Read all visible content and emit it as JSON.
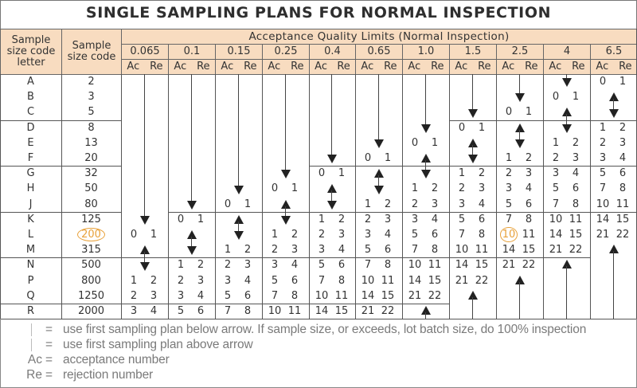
{
  "title": "SINGLE SAMPLING PLANS FOR NORMAL INSPECTION",
  "header": {
    "letter_col": "Sample size code letter",
    "size_col": "Sample size code",
    "aql_title": "Acceptance Quality Limits (Normal Inspection)",
    "ac": "Ac",
    "re": "Re"
  },
  "rows": [
    {
      "letter": "A",
      "size": "2"
    },
    {
      "letter": "B",
      "size": "3"
    },
    {
      "letter": "C",
      "size": "5"
    },
    {
      "letter": "D",
      "size": "8"
    },
    {
      "letter": "E",
      "size": "13"
    },
    {
      "letter": "F",
      "size": "20"
    },
    {
      "letter": "G",
      "size": "32"
    },
    {
      "letter": "H",
      "size": "50"
    },
    {
      "letter": "J",
      "size": "80"
    },
    {
      "letter": "K",
      "size": "125"
    },
    {
      "letter": "L",
      "size": "200",
      "highlight": true
    },
    {
      "letter": "M",
      "size": "315"
    },
    {
      "letter": "N",
      "size": "500"
    },
    {
      "letter": "P",
      "size": "800"
    },
    {
      "letter": "Q",
      "size": "1250"
    },
    {
      "letter": "R",
      "size": "2000"
    }
  ],
  "columns": [
    {
      "aql": "0.065",
      "cells": [
        "down",
        "down",
        "down",
        "down",
        "down",
        "down",
        "down",
        "down",
        "down",
        "down",
        [
          "0",
          "1"
        ],
        "both",
        "both",
        [
          "1",
          "2"
        ],
        [
          "2",
          "3"
        ],
        [
          "3",
          "4"
        ]
      ]
    },
    {
      "aql": "0.1",
      "cells": [
        "down",
        "down",
        "down",
        "down",
        "down",
        "down",
        "down",
        "down",
        "down",
        [
          "0",
          "1"
        ],
        "both",
        "both",
        [
          "1",
          "2"
        ],
        [
          "2",
          "3"
        ],
        [
          "3",
          "4"
        ],
        [
          "5",
          "6"
        ]
      ]
    },
    {
      "aql": "0.15",
      "cells": [
        "down",
        "down",
        "down",
        "down",
        "down",
        "down",
        "down",
        "down",
        [
          "0",
          "1"
        ],
        "both",
        "both",
        [
          "1",
          "2"
        ],
        [
          "2",
          "3"
        ],
        [
          "3",
          "4"
        ],
        [
          "5",
          "6"
        ],
        [
          "7",
          "8"
        ]
      ]
    },
    {
      "aql": "0.25",
      "cells": [
        "down",
        "down",
        "down",
        "down",
        "down",
        "down",
        "down",
        [
          "0",
          "1"
        ],
        "both",
        "both",
        [
          "1",
          "2"
        ],
        [
          "2",
          "3"
        ],
        [
          "3",
          "4"
        ],
        [
          "5",
          "6"
        ],
        [
          "7",
          "8"
        ],
        [
          "10",
          "11"
        ]
      ]
    },
    {
      "aql": "0.4",
      "cells": [
        "down",
        "down",
        "down",
        "down",
        "down",
        "down",
        [
          "0",
          "1"
        ],
        "both",
        "both",
        [
          "1",
          "2"
        ],
        [
          "2",
          "3"
        ],
        [
          "3",
          "4"
        ],
        [
          "5",
          "6"
        ],
        [
          "7",
          "8"
        ],
        [
          "10",
          "11"
        ],
        [
          "14",
          "15"
        ]
      ]
    },
    {
      "aql": "0.65",
      "cells": [
        "down",
        "down",
        "down",
        "down",
        "down",
        [
          "0",
          "1"
        ],
        "both",
        "both",
        [
          "1",
          "2"
        ],
        [
          "2",
          "3"
        ],
        [
          "3",
          "4"
        ],
        [
          "5",
          "6"
        ],
        [
          "7",
          "8"
        ],
        [
          "10",
          "11"
        ],
        [
          "14",
          "15"
        ],
        [
          "21",
          "22"
        ]
      ]
    },
    {
      "aql": "1.0",
      "cells": [
        "down",
        "down",
        "down",
        "down",
        [
          "0",
          "1"
        ],
        "both",
        "both",
        [
          "1",
          "2"
        ],
        [
          "2",
          "3"
        ],
        [
          "3",
          "4"
        ],
        [
          "5",
          "6"
        ],
        [
          "7",
          "8"
        ],
        [
          "10",
          "11"
        ],
        [
          "14",
          "15"
        ],
        [
          "21",
          "22"
        ],
        "up"
      ]
    },
    {
      "aql": "1.5",
      "cells": [
        "down",
        "down",
        "down",
        [
          "0",
          "1"
        ],
        "both",
        "both",
        [
          "1",
          "2"
        ],
        [
          "2",
          "3"
        ],
        [
          "3",
          "4"
        ],
        [
          "5",
          "6"
        ],
        [
          "7",
          "8"
        ],
        [
          "10",
          "11"
        ],
        [
          "14",
          "15"
        ],
        [
          "21",
          "22"
        ],
        "up",
        "up"
      ]
    },
    {
      "aql": "2.5",
      "cells": [
        "down",
        "down",
        [
          "0",
          "1"
        ],
        "both",
        "both",
        [
          "1",
          "2"
        ],
        [
          "2",
          "3"
        ],
        [
          "3",
          "4"
        ],
        [
          "5",
          "6"
        ],
        [
          "7",
          "8"
        ],
        [
          "10",
          "11"
        ],
        [
          "14",
          "15"
        ],
        [
          "21",
          "22"
        ],
        "up",
        "up",
        "up"
      ],
      "highlight_row": 10
    },
    {
      "aql": "4",
      "cells": [
        "down",
        [
          "0",
          "1"
        ],
        "both",
        "both",
        [
          "1",
          "2"
        ],
        [
          "2",
          "3"
        ],
        [
          "3",
          "4"
        ],
        [
          "5",
          "6"
        ],
        [
          "7",
          "8"
        ],
        [
          "10",
          "11"
        ],
        [
          "14",
          "15"
        ],
        [
          "21",
          "22"
        ],
        "up",
        "up",
        "up",
        "up"
      ]
    },
    {
      "aql": "6.5",
      "cells": [
        [
          "0",
          "1"
        ],
        "both",
        "both",
        [
          "1",
          "2"
        ],
        [
          "2",
          "3"
        ],
        [
          "3",
          "4"
        ],
        [
          "5",
          "6"
        ],
        [
          "7",
          "8"
        ],
        [
          "10",
          "11"
        ],
        [
          "14",
          "15"
        ],
        [
          "21",
          "22"
        ],
        "up",
        "up",
        "up",
        "up",
        "up"
      ]
    }
  ],
  "highlight_color": "#e8a13a",
  "header_color": "#f8dcc0",
  "legend": [
    {
      "symbol_icon": "arrow-down-icon",
      "eq": "=",
      "text": "use first sampling plan below arrow. If sample size, or exceeds, lot batch size, do 100% inspection"
    },
    {
      "symbol_icon": "arrow-up-icon",
      "eq": "=",
      "text": "use first sampling plan above arrow"
    },
    {
      "symbol": "Ac",
      "eq": "=",
      "text": "acceptance number"
    },
    {
      "symbol": "Re",
      "eq": "=",
      "text": "rejection number"
    }
  ]
}
